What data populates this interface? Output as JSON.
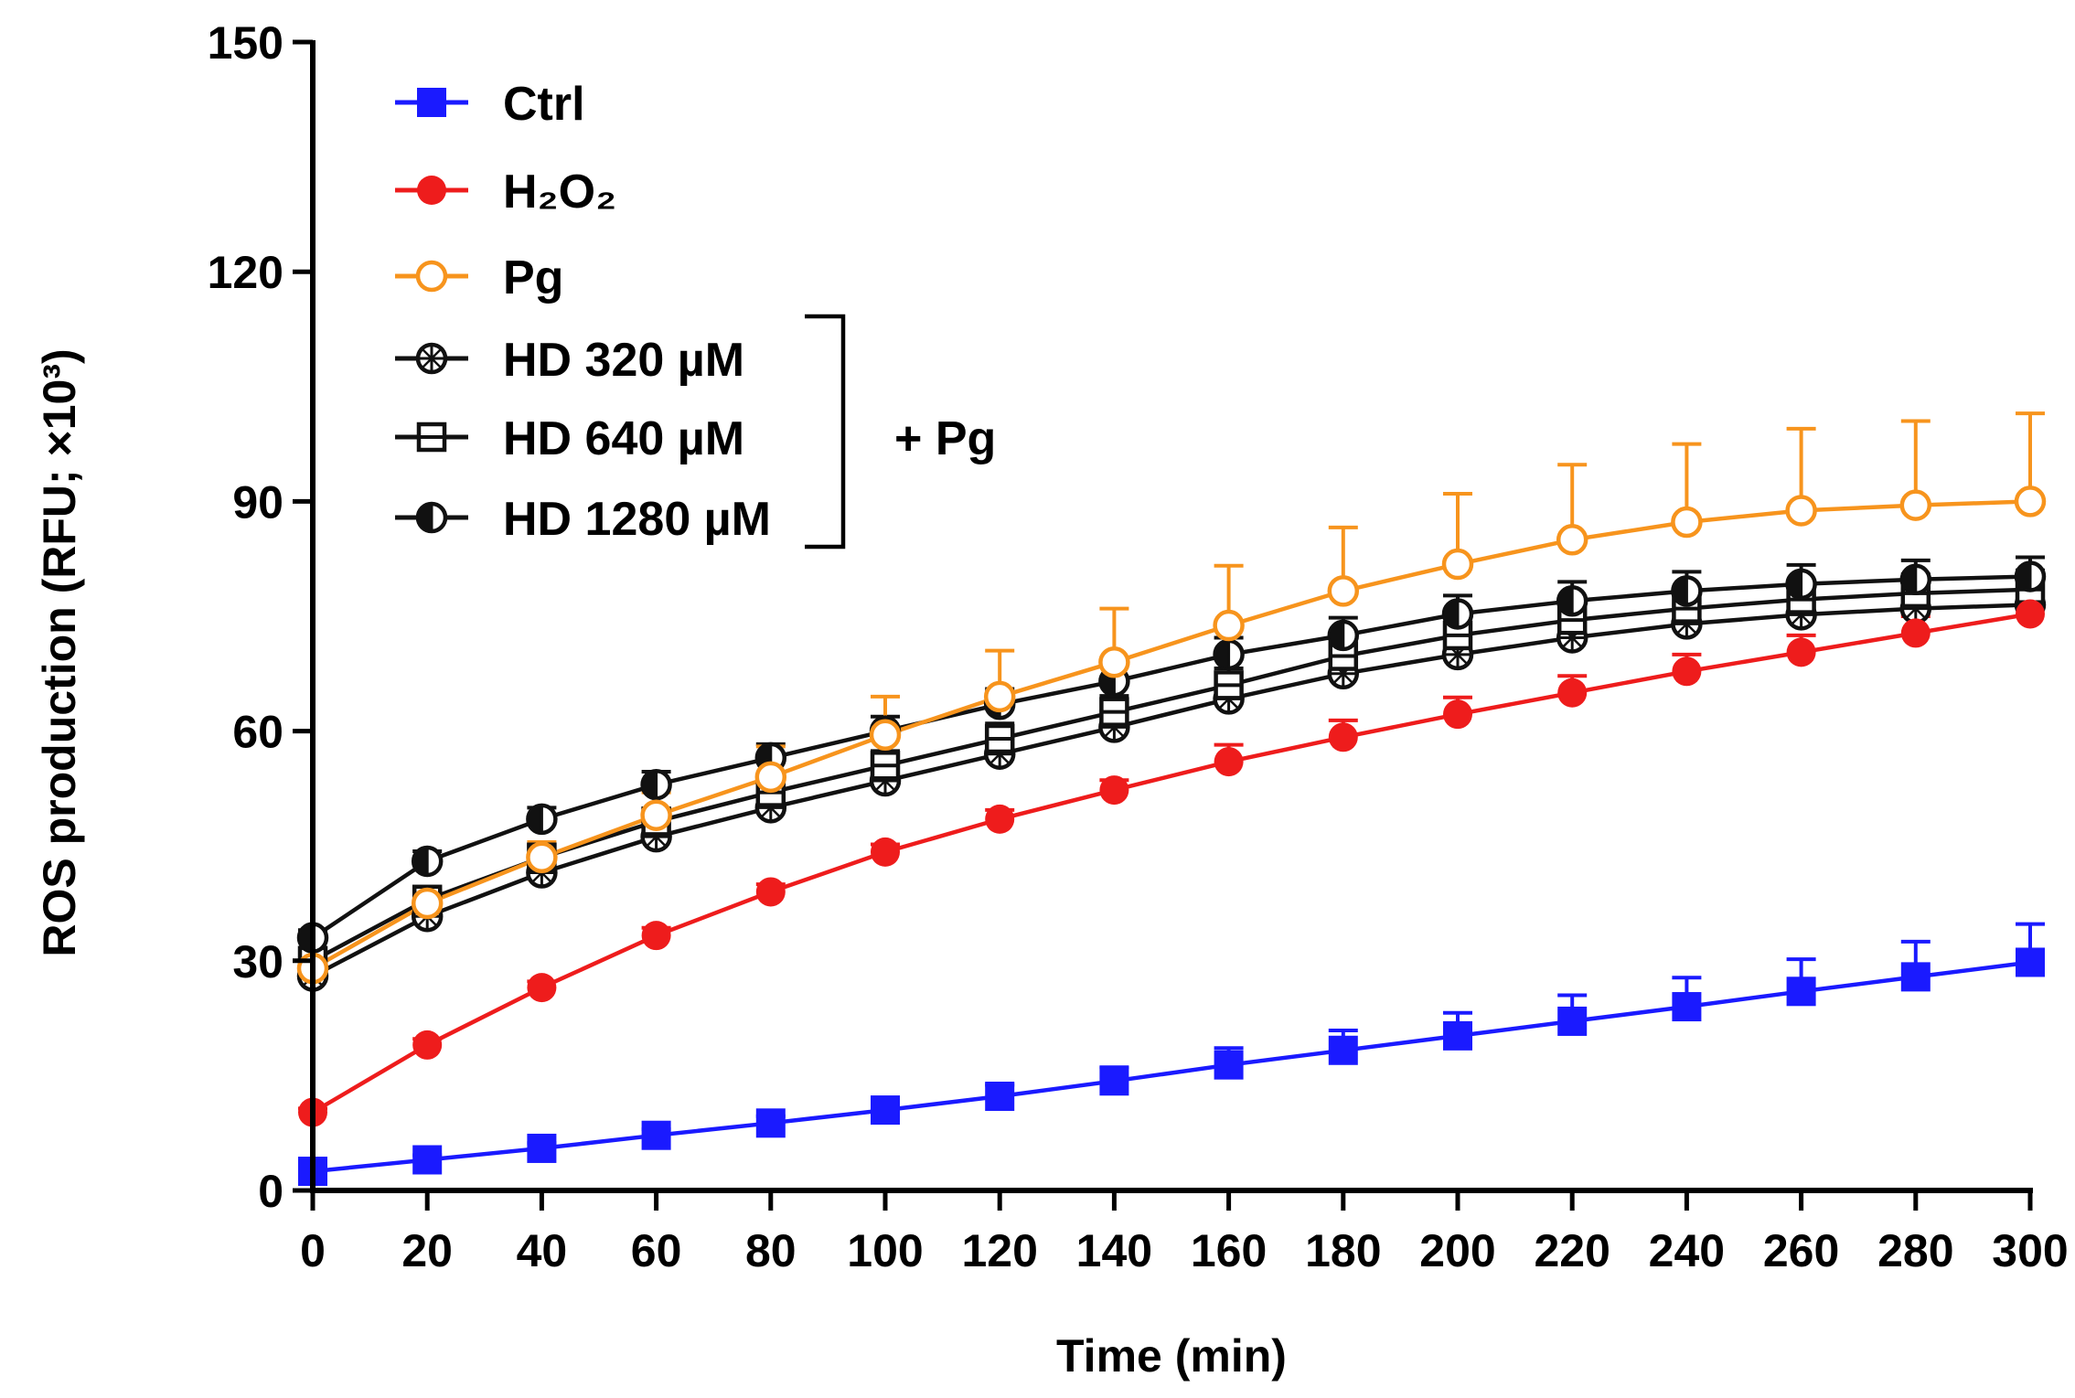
{
  "chart_data": {
    "type": "line",
    "xlabel": "Time (min)",
    "ylabel": "ROS production (RFU; ×10³)",
    "xlim": [
      0,
      300
    ],
    "ylim": [
      0,
      150
    ],
    "xticks": [
      0,
      20,
      40,
      60,
      80,
      100,
      120,
      140,
      160,
      180,
      200,
      220,
      240,
      260,
      280,
      300
    ],
    "yticks": [
      0,
      30,
      60,
      90,
      120,
      150
    ],
    "grid": false,
    "legend_position": "top-left",
    "legend_bracket_label": "+ Pg",
    "x": [
      0,
      20,
      40,
      60,
      80,
      100,
      120,
      140,
      160,
      180,
      200,
      220,
      240,
      260,
      280,
      300
    ],
    "series": [
      {
        "name": "Ctrl",
        "color": "#1a1aff",
        "marker": "square-filled",
        "values": [
          2.5,
          4,
          5.5,
          7.2,
          8.8,
          10.5,
          12.3,
          14.3,
          16.4,
          18.3,
          20.2,
          22.1,
          24,
          26,
          27.9,
          29.8
        ],
        "errors": [
          0.5,
          0.6,
          0.7,
          0.8,
          0.9,
          1.2,
          1.5,
          1.8,
          2.2,
          2.6,
          3,
          3.4,
          3.8,
          4.2,
          4.6,
          5
        ]
      },
      {
        "name": "H₂O₂",
        "color": "#ee1c1c",
        "marker": "circle-filled",
        "values": [
          10.2,
          19,
          26.5,
          33.3,
          39,
          44.2,
          48.5,
          52.3,
          56,
          59.2,
          62.2,
          65,
          67.8,
          70.3,
          72.8,
          75.3
        ],
        "errors": [
          0.5,
          0.8,
          0.8,
          1,
          1,
          1,
          1.2,
          1.3,
          2.2,
          2.2,
          2.2,
          2.2,
          2.2,
          2.2,
          2.2,
          2.2
        ]
      },
      {
        "name": "Pg",
        "color": "#f7941d",
        "marker": "circle-open",
        "values": [
          29,
          37.5,
          43.5,
          49,
          54,
          59.5,
          64.5,
          69,
          73.8,
          78.3,
          81.8,
          85,
          87.3,
          88.8,
          89.5,
          90
        ],
        "errors": [
          1,
          1.5,
          2,
          3,
          4,
          5,
          6,
          7,
          7.8,
          8.3,
          9.2,
          9.8,
          10.2,
          10.7,
          11,
          11.5
        ]
      },
      {
        "name": "HD 320 µM",
        "color": "#111111",
        "marker": "circle-hatched",
        "values": [
          28,
          35.8,
          41.5,
          46.2,
          50,
          53.5,
          57,
          60.5,
          64.2,
          67.5,
          70,
          72.2,
          74,
          75.2,
          76,
          76.5
        ],
        "errors": [
          1,
          1.3,
          1.5,
          1.7,
          1.8,
          1.9,
          2,
          2.1,
          2.2,
          2.3,
          2.4,
          2.5,
          2.5,
          2.5,
          2.5,
          2.5
        ]
      },
      {
        "name": "HD 640 µM",
        "color": "#111111",
        "marker": "square-open",
        "values": [
          30,
          38,
          43.5,
          48.2,
          52,
          55.5,
          59,
          62.5,
          66,
          69.8,
          72.5,
          74.5,
          76,
          77.2,
          78,
          78.5
        ],
        "errors": [
          1,
          1.3,
          1.5,
          1.7,
          1.8,
          1.9,
          2,
          2.1,
          2.2,
          2.3,
          2.4,
          2.5,
          2.5,
          2.5,
          2.5,
          2.5
        ]
      },
      {
        "name": "HD 1280 µM",
        "color": "#111111",
        "marker": "circle-half",
        "values": [
          33,
          43,
          48.5,
          53,
          56.5,
          60,
          63.5,
          66.5,
          70,
          72.5,
          75.3,
          77,
          78.3,
          79.2,
          79.8,
          80.2
        ],
        "errors": [
          1,
          1.3,
          1.5,
          1.7,
          1.8,
          1.9,
          2,
          2.1,
          2.2,
          2.3,
          2.4,
          2.5,
          2.5,
          2.5,
          2.5,
          2.5
        ]
      }
    ]
  }
}
